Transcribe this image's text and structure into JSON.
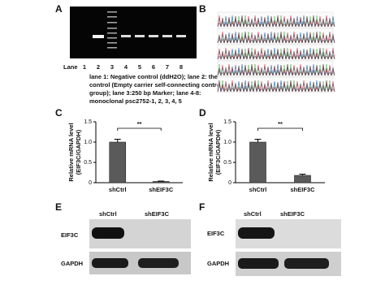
{
  "panels": {
    "a": {
      "label": "A",
      "lane_title": "Lane",
      "lanes": [
        "1",
        "2",
        "3",
        "4",
        "5",
        "6",
        "7",
        "8"
      ],
      "caption": [
        "lane 1: Negative control (ddH2O); lane 2: the",
        "control (Empty carrier self-connecting control",
        "group); lane 3:250 bp Marker; lane 4-8:",
        "monoclonal psc2752-1, 2, 3, 4, 5"
      ]
    },
    "b": {
      "label": "B"
    },
    "e": {
      "label": "E",
      "columns": [
        "shCtrl",
        "shEIF3C"
      ],
      "rows": [
        "EIF3C",
        "GAPDH"
      ]
    },
    "f": {
      "label": "F",
      "columns": [
        "shCtrl",
        "shEIF3C"
      ],
      "rows": [
        "EIF3C",
        "GAPDH"
      ]
    }
  },
  "chart_data": [
    {
      "type": "bar",
      "label": "C",
      "ylabel": [
        "Relative mRNA level",
        "(EIF3C/GAPDH)"
      ],
      "categories": [
        "shCtrl",
        "shEIF3C"
      ],
      "values": [
        1.0,
        0.03
      ],
      "errors": [
        0.07,
        0.01
      ],
      "color": "#5a5a5a",
      "ylim": [
        0,
        1.5
      ],
      "yticks": [
        0,
        0.5,
        {
          "value": 1,
          "label": "1.0"
        },
        1.5
      ],
      "annotation": "**"
    },
    {
      "type": "bar",
      "label": "D",
      "ylabel": [
        "Relative mRNA level",
        "(EIF3C/GAPDH)"
      ],
      "categories": [
        "shCtrl",
        "shEIF3C"
      ],
      "values": [
        1.0,
        0.18
      ],
      "errors": [
        0.07,
        0.03
      ],
      "color": "#5a5a5a",
      "ylim": [
        0,
        1.5
      ],
      "yticks": [
        0,
        0.5,
        {
          "value": 1,
          "label": "1.0"
        },
        1.5
      ],
      "annotation": "**"
    }
  ]
}
